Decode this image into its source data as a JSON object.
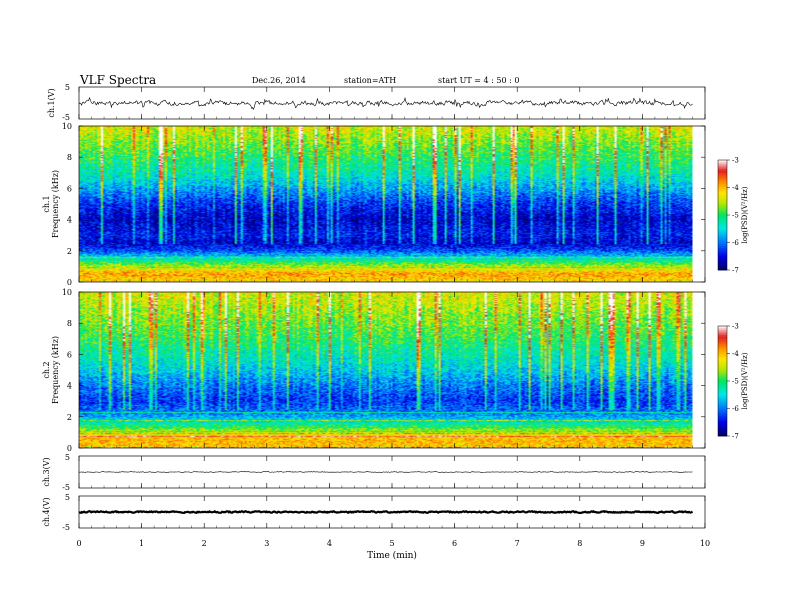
{
  "header": {
    "title": "VLF  Spectra",
    "date": "Dec.26, 2014",
    "station": "station=ATH",
    "start": "start  UT =   4  : 50 : 0"
  },
  "colors": {
    "scale": [
      "#00006e",
      "#0000e6",
      "#0078ff",
      "#00e6e6",
      "#00e664",
      "#b4e600",
      "#ffe600",
      "#ff8c00",
      "#e61e1e",
      "#ffffff"
    ]
  },
  "chart_data": [
    {
      "type": "line",
      "id": "ch1",
      "ylabel": "ch.1(V)",
      "ylim": [
        -5,
        5
      ],
      "yticks": [
        "5",
        "-5"
      ],
      "description_values": {
        "mean": 0.0,
        "amplitude_typical": 1.2,
        "spike_max": 2.5
      }
    },
    {
      "type": "heatmap",
      "id": "spec1",
      "ylabel": "ch.1\nFrequency (kHz)",
      "ylabel_lines": [
        "ch.1",
        "Frequency  (kHz)"
      ],
      "ylim": [
        0,
        10
      ],
      "yticks": [
        "0",
        "2",
        "4",
        "6",
        "8",
        "10"
      ],
      "colorbar": {
        "label": "log(PSD)(V²/Hz)",
        "range": [
          -7,
          -3
        ],
        "ticks": [
          "-3",
          "-4",
          "-5",
          "-6",
          "-7"
        ]
      },
      "frequency_profile_kHz": [
        {
          "f": 0.0,
          "logpsd": -4.2
        },
        {
          "f": 0.5,
          "logpsd": -3.9
        },
        {
          "f": 1.0,
          "logpsd": -4.6
        },
        {
          "f": 1.5,
          "logpsd": -5.4
        },
        {
          "f": 2.0,
          "logpsd": -6.2
        },
        {
          "f": 2.5,
          "logpsd": -6.6
        },
        {
          "f": 3.0,
          "logpsd": -6.4
        },
        {
          "f": 4.0,
          "logpsd": -6.6
        },
        {
          "f": 5.0,
          "logpsd": -6.3
        },
        {
          "f": 6.0,
          "logpsd": -5.8
        },
        {
          "f": 7.0,
          "logpsd": -5.3
        },
        {
          "f": 8.0,
          "logpsd": -5.0
        },
        {
          "f": 9.0,
          "logpsd": -4.7
        },
        {
          "f": 10.0,
          "logpsd": -4.4
        }
      ]
    },
    {
      "type": "heatmap",
      "id": "spec2",
      "ylabel_lines": [
        "ch.2",
        "Frequency  (kHz)"
      ],
      "ylim": [
        0,
        10
      ],
      "yticks": [
        "0",
        "2",
        "4",
        "6",
        "8",
        "10"
      ],
      "colorbar": {
        "label": "log(PSD)(V²/Hz)",
        "range": [
          -7,
          -3
        ],
        "ticks": [
          "-3",
          "-4",
          "-5",
          "-6",
          "-7"
        ]
      },
      "frequency_profile_kHz": [
        {
          "f": 0.0,
          "logpsd": -4.1
        },
        {
          "f": 0.5,
          "logpsd": -4.0
        },
        {
          "f": 1.0,
          "logpsd": -4.5
        },
        {
          "f": 1.5,
          "logpsd": -5.2
        },
        {
          "f": 2.0,
          "logpsd": -5.8
        },
        {
          "f": 2.5,
          "logpsd": -6.1
        },
        {
          "f": 3.0,
          "logpsd": -6.3
        },
        {
          "f": 4.0,
          "logpsd": -6.0
        },
        {
          "f": 5.0,
          "logpsd": -5.6
        },
        {
          "f": 6.0,
          "logpsd": -5.3
        },
        {
          "f": 7.0,
          "logpsd": -5.0
        },
        {
          "f": 8.0,
          "logpsd": -4.8
        },
        {
          "f": 9.0,
          "logpsd": -4.6
        },
        {
          "f": 10.0,
          "logpsd": -4.4
        }
      ]
    },
    {
      "type": "line",
      "id": "ch3",
      "ylabel": "ch.3(V)",
      "ylim": [
        -5,
        5
      ],
      "yticks": [
        "5",
        "-5"
      ],
      "description_values": {
        "mean": 0.0,
        "amplitude_typical": 0.2
      }
    },
    {
      "type": "line",
      "id": "ch4",
      "ylabel": "ch.4(V)",
      "ylim": [
        -5,
        5
      ],
      "yticks": [
        "5",
        "-5"
      ],
      "description_values": {
        "mean": 0.0,
        "amplitude_typical": 0.35
      }
    }
  ],
  "xaxis": {
    "label": "Time  (min)",
    "xlim": [
      0,
      10
    ],
    "ticks": [
      "0",
      "1",
      "2",
      "3",
      "4",
      "5",
      "6",
      "7",
      "8",
      "9",
      "10"
    ],
    "data_end_min": 9.8
  }
}
